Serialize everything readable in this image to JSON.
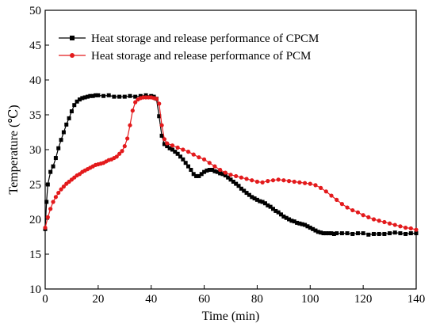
{
  "chart_data": {
    "type": "line",
    "xlabel": "Time (min)",
    "ylabel": "Temperature (℃)",
    "xlim": [
      0,
      140
    ],
    "ylim": [
      10,
      50
    ],
    "xticks": [
      0,
      20,
      40,
      60,
      80,
      100,
      120,
      140
    ],
    "yticks": [
      10,
      15,
      20,
      25,
      30,
      35,
      40,
      45,
      50
    ],
    "grid": false,
    "legend_position": "top-left",
    "series": [
      {
        "name": "Heat storage and release performance of CPCM",
        "color": "#000000",
        "marker": "square",
        "x": [
          0,
          0.5,
          1,
          2,
          3,
          4,
          5,
          6,
          7,
          8,
          9,
          10,
          11,
          12,
          13,
          14,
          15,
          16,
          17,
          18,
          19,
          20,
          22,
          24,
          26,
          28,
          30,
          32,
          34,
          36,
          38,
          40,
          41,
          42,
          43,
          44,
          45,
          46,
          47,
          48,
          49,
          50,
          51,
          52,
          53,
          54,
          55,
          56,
          57,
          58,
          59,
          60,
          61,
          62,
          63,
          64,
          65,
          66,
          67,
          68,
          69,
          70,
          71,
          72,
          73,
          74,
          75,
          76,
          77,
          78,
          79,
          80,
          81,
          82,
          83,
          84,
          85,
          86,
          87,
          88,
          89,
          90,
          91,
          92,
          93,
          94,
          95,
          96,
          97,
          98,
          99,
          100,
          101,
          102,
          103,
          104,
          105,
          106,
          107,
          108,
          109,
          110,
          112,
          114,
          116,
          118,
          120,
          122,
          124,
          126,
          128,
          130,
          132,
          134,
          136,
          138,
          140
        ],
        "y": [
          18.6,
          22.5,
          25.0,
          26.8,
          27.6,
          28.8,
          30.2,
          31.4,
          32.5,
          33.6,
          34.5,
          35.5,
          36.4,
          36.9,
          37.2,
          37.4,
          37.5,
          37.6,
          37.7,
          37.7,
          37.8,
          37.8,
          37.7,
          37.8,
          37.6,
          37.6,
          37.6,
          37.7,
          37.6,
          37.7,
          37.8,
          37.7,
          37.6,
          37.3,
          34.8,
          32.0,
          30.8,
          30.5,
          30.2,
          30.0,
          29.7,
          29.4,
          29.0,
          28.6,
          28.1,
          27.6,
          27.1,
          26.5,
          26.2,
          26.2,
          26.5,
          26.8,
          27.0,
          27.1,
          27.1,
          26.9,
          26.8,
          26.6,
          26.5,
          26.3,
          26.0,
          25.7,
          25.4,
          25.1,
          24.8,
          24.4,
          24.1,
          23.8,
          23.5,
          23.2,
          23.0,
          22.8,
          22.6,
          22.5,
          22.3,
          22.0,
          21.8,
          21.5,
          21.2,
          21.0,
          20.7,
          20.4,
          20.2,
          20.0,
          19.8,
          19.7,
          19.5,
          19.4,
          19.3,
          19.2,
          19.0,
          18.8,
          18.6,
          18.4,
          18.2,
          18.1,
          18.0,
          18.0,
          18.0,
          18.0,
          17.9,
          18.0,
          18.0,
          18.0,
          17.9,
          18.0,
          18.0,
          17.8,
          17.9,
          17.9,
          17.9,
          18.0,
          18.1,
          18.0,
          17.9,
          18.0,
          18.0
        ]
      },
      {
        "name": "Heat storage and release performance of PCM",
        "color": "#e31a1c",
        "marker": "circle",
        "x": [
          0,
          1,
          2,
          3,
          4,
          5,
          6,
          7,
          8,
          9,
          10,
          11,
          12,
          13,
          14,
          15,
          16,
          17,
          18,
          19,
          20,
          21,
          22,
          23,
          24,
          25,
          26,
          27,
          28,
          29,
          30,
          31,
          32,
          33,
          34,
          35,
          36,
          37,
          38,
          39,
          40,
          41,
          42,
          43,
          44,
          45,
          46,
          48,
          50,
          52,
          54,
          56,
          58,
          60,
          62,
          64,
          66,
          68,
          70,
          72,
          74,
          76,
          78,
          80,
          82,
          84,
          86,
          88,
          90,
          92,
          94,
          96,
          98,
          100,
          102,
          104,
          106,
          108,
          110,
          112,
          114,
          116,
          118,
          120,
          122,
          124,
          126,
          128,
          130,
          132,
          134,
          136,
          138,
          140
        ],
        "y": [
          18.8,
          20.3,
          21.5,
          22.5,
          23.2,
          23.8,
          24.3,
          24.7,
          25.1,
          25.4,
          25.7,
          26.0,
          26.3,
          26.5,
          26.8,
          27.0,
          27.2,
          27.4,
          27.6,
          27.8,
          27.9,
          28.0,
          28.1,
          28.3,
          28.5,
          28.6,
          28.8,
          29.0,
          29.4,
          29.8,
          30.5,
          31.6,
          33.5,
          35.6,
          36.8,
          37.2,
          37.4,
          37.5,
          37.5,
          37.5,
          37.5,
          37.4,
          37.3,
          36.6,
          33.5,
          31.5,
          30.9,
          30.6,
          30.3,
          30.0,
          29.7,
          29.3,
          28.9,
          28.6,
          28.1,
          27.6,
          27.1,
          26.7,
          26.4,
          26.2,
          26.0,
          25.8,
          25.6,
          25.4,
          25.3,
          25.5,
          25.6,
          25.7,
          25.6,
          25.5,
          25.4,
          25.3,
          25.2,
          25.1,
          24.9,
          24.5,
          24.0,
          23.4,
          22.8,
          22.2,
          21.7,
          21.3,
          21.0,
          20.6,
          20.3,
          20.0,
          19.8,
          19.6,
          19.4,
          19.2,
          19.0,
          18.8,
          18.7,
          18.5
        ]
      }
    ]
  }
}
